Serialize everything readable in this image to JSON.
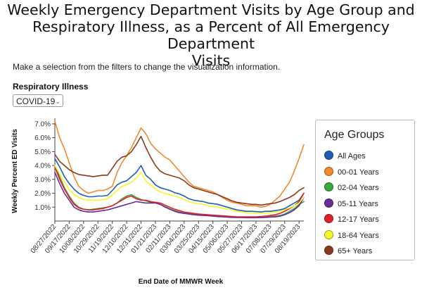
{
  "page": {
    "title_line1": "Weekly Emergency Department Visits by Age Group and",
    "title_line2": "Respiratory Illness, as a Percent of All Emergency Department",
    "title_line3": "Visits",
    "subtitle": "Make a selection from the filters to change the visualization information."
  },
  "filter": {
    "label": "Respiratory Illness",
    "selected": "COVID-19"
  },
  "legend": {
    "title": "Age Groups",
    "items": [
      {
        "label": "All Ages",
        "color": "#1f5fb0"
      },
      {
        "label": "00-01 Years",
        "color": "#f08a2b"
      },
      {
        "label": "02-04 Years",
        "color": "#3aa83a"
      },
      {
        "label": "05-11 Years",
        "color": "#6a2c99"
      },
      {
        "label": "12-17 Years",
        "color": "#e0202a"
      },
      {
        "label": "18-64 Years",
        "color": "#f5f52a"
      },
      {
        "label": "65+ Years",
        "color": "#8b3a1a"
      }
    ]
  },
  "chart_data": {
    "type": "line",
    "xlabel": "End Date of MMWR Week",
    "ylabel": "Weekly Percent ED Visits",
    "ylim": [
      0,
      7.2
    ],
    "yticks": [
      1,
      2,
      3,
      4,
      5,
      6,
      7
    ],
    "ytick_labels": [
      "1.0%",
      "2.0%",
      "3.0%",
      "4.0%",
      "5.0%",
      "6.0%",
      "7.0%"
    ],
    "grid": false,
    "legend_position": "right",
    "x": [
      "08/27/2022",
      "09/03/2022",
      "09/10/2022",
      "09/17/2022",
      "09/24/2022",
      "10/01/2022",
      "10/08/2022",
      "10/15/2022",
      "10/22/2022",
      "10/29/2022",
      "11/05/2022",
      "11/12/2022",
      "11/19/2022",
      "11/26/2022",
      "12/03/2022",
      "12/10/2022",
      "12/17/2022",
      "12/24/2022",
      "12/31/2022",
      "01/07/2023",
      "01/14/2023",
      "01/21/2023",
      "01/28/2023",
      "02/04/2023",
      "02/11/2023",
      "02/18/2023",
      "02/25/2023",
      "03/04/2023",
      "03/11/2023",
      "03/18/2023",
      "03/25/2023",
      "04/01/2023",
      "04/08/2023",
      "04/15/2023",
      "04/22/2023",
      "04/29/2023",
      "05/06/2023",
      "05/13/2023",
      "05/20/2023",
      "05/27/2023",
      "06/03/2023",
      "06/10/2023",
      "06/17/2023",
      "06/24/2023",
      "07/01/2023",
      "07/08/2023",
      "07/15/2023",
      "07/22/2023",
      "07/29/2023",
      "08/05/2023",
      "08/12/2023",
      "08/19/2023",
      "08/26/2023"
    ],
    "xtick_labels": [
      "08/27/2022",
      "09/17/2022",
      "10/08/2022",
      "10/29/2022",
      "11/19/2022",
      "12/10/2022",
      "12/31/2022",
      "01/21/2023",
      "02/11/2023",
      "03/04/2023",
      "03/25/2023",
      "04/15/2023",
      "05/06/2023",
      "05/27/2023",
      "06/17/2023",
      "07/08/2023",
      "07/29/2023",
      "08/19/2023"
    ],
    "series": [
      {
        "name": "All Ages",
        "color": "#1f5fb0",
        "values": [
          4.5,
          3.9,
          3.2,
          2.7,
          2.3,
          2.0,
          1.85,
          1.75,
          1.75,
          1.8,
          1.8,
          1.85,
          2.2,
          2.6,
          2.8,
          2.9,
          3.2,
          3.5,
          4.0,
          3.3,
          3.0,
          2.6,
          2.4,
          2.3,
          2.2,
          2.05,
          1.95,
          1.8,
          1.6,
          1.5,
          1.45,
          1.4,
          1.3,
          1.25,
          1.2,
          1.1,
          1.0,
          0.9,
          0.8,
          0.75,
          0.7,
          0.7,
          0.68,
          0.65,
          0.7,
          0.7,
          0.75,
          0.8,
          0.9,
          1.1,
          1.3,
          1.5,
          2.0
        ]
      },
      {
        "name": "00-01 Years",
        "color": "#f08a2b",
        "values": [
          7.2,
          6.0,
          5.2,
          4.2,
          3.2,
          2.5,
          2.2,
          2.0,
          2.1,
          2.2,
          2.2,
          2.3,
          2.5,
          3.5,
          4.2,
          4.7,
          5.3,
          6.0,
          6.7,
          6.3,
          5.6,
          5.2,
          4.9,
          4.6,
          4.4,
          4.0,
          3.6,
          3.2,
          2.8,
          2.5,
          2.4,
          2.3,
          2.2,
          2.1,
          1.9,
          1.7,
          1.5,
          1.35,
          1.3,
          1.2,
          1.1,
          1.1,
          1.1,
          1.0,
          1.05,
          1.2,
          1.5,
          1.8,
          2.3,
          2.8,
          3.6,
          4.5,
          5.5
        ]
      },
      {
        "name": "02-04 Years",
        "color": "#3aa83a",
        "values": [
          4.0,
          3.2,
          2.4,
          1.8,
          1.3,
          1.0,
          0.85,
          0.8,
          0.85,
          0.9,
          0.95,
          1.0,
          1.1,
          1.3,
          1.6,
          1.8,
          1.9,
          1.7,
          1.55,
          1.45,
          1.35,
          1.3,
          1.2,
          1.05,
          0.9,
          0.75,
          0.65,
          0.6,
          0.55,
          0.5,
          0.48,
          0.45,
          0.42,
          0.4,
          0.38,
          0.35,
          0.32,
          0.3,
          0.28,
          0.27,
          0.26,
          0.26,
          0.27,
          0.28,
          0.3,
          0.32,
          0.35,
          0.4,
          0.5,
          0.7,
          0.9,
          1.2,
          1.4
        ]
      },
      {
        "name": "05-11 Years",
        "color": "#6a2c99",
        "values": [
          3.5,
          2.7,
          2.0,
          1.5,
          1.0,
          0.8,
          0.7,
          0.65,
          0.65,
          0.7,
          0.75,
          0.8,
          0.9,
          1.0,
          1.1,
          1.2,
          1.3,
          1.4,
          1.35,
          1.3,
          1.3,
          1.3,
          1.2,
          1.0,
          0.85,
          0.7,
          0.6,
          0.55,
          0.5,
          0.45,
          0.42,
          0.4,
          0.38,
          0.35,
          0.32,
          0.3,
          0.28,
          0.26,
          0.25,
          0.25,
          0.24,
          0.24,
          0.24,
          0.25,
          0.26,
          0.28,
          0.3,
          0.35,
          0.45,
          0.6,
          0.8,
          1.1,
          1.7
        ]
      },
      {
        "name": "12-17 Years",
        "color": "#e0202a",
        "values": [
          3.9,
          3.0,
          2.3,
          1.7,
          1.2,
          0.95,
          0.85,
          0.8,
          0.8,
          0.85,
          0.9,
          1.0,
          1.1,
          1.3,
          1.5,
          1.7,
          1.8,
          1.6,
          1.5,
          1.5,
          1.4,
          1.35,
          1.3,
          1.15,
          1.0,
          0.85,
          0.75,
          0.65,
          0.6,
          0.55,
          0.5,
          0.48,
          0.45,
          0.42,
          0.4,
          0.38,
          0.35,
          0.33,
          0.3,
          0.3,
          0.3,
          0.3,
          0.3,
          0.32,
          0.35,
          0.4,
          0.45,
          0.55,
          0.7,
          0.9,
          1.1,
          1.4,
          2.0
        ]
      },
      {
        "name": "18-64 Years",
        "color": "#f5f52a",
        "values": [
          4.0,
          3.4,
          2.8,
          2.3,
          1.9,
          1.7,
          1.55,
          1.5,
          1.5,
          1.5,
          1.55,
          1.6,
          1.9,
          2.2,
          2.5,
          2.6,
          2.8,
          3.1,
          3.5,
          2.9,
          2.6,
          2.3,
          2.1,
          2.0,
          1.9,
          1.8,
          1.7,
          1.55,
          1.4,
          1.3,
          1.25,
          1.2,
          1.1,
          1.05,
          1.0,
          0.92,
          0.85,
          0.78,
          0.7,
          0.65,
          0.6,
          0.58,
          0.56,
          0.56,
          0.58,
          0.6,
          0.65,
          0.7,
          0.8,
          0.95,
          1.1,
          1.3,
          1.7
        ]
      },
      {
        "name": "65+ Years",
        "color": "#8b3a1a",
        "values": [
          4.8,
          4.3,
          4.0,
          3.7,
          3.5,
          3.35,
          3.3,
          3.25,
          3.2,
          3.25,
          3.3,
          3.3,
          3.8,
          4.3,
          4.6,
          4.7,
          5.0,
          5.5,
          6.1,
          5.3,
          4.6,
          4.0,
          3.6,
          3.4,
          3.3,
          3.2,
          3.1,
          2.9,
          2.6,
          2.4,
          2.3,
          2.2,
          2.1,
          2.0,
          1.9,
          1.75,
          1.6,
          1.45,
          1.35,
          1.3,
          1.25,
          1.2,
          1.2,
          1.15,
          1.2,
          1.25,
          1.3,
          1.4,
          1.55,
          1.7,
          1.9,
          2.2,
          2.4
        ]
      }
    ]
  }
}
